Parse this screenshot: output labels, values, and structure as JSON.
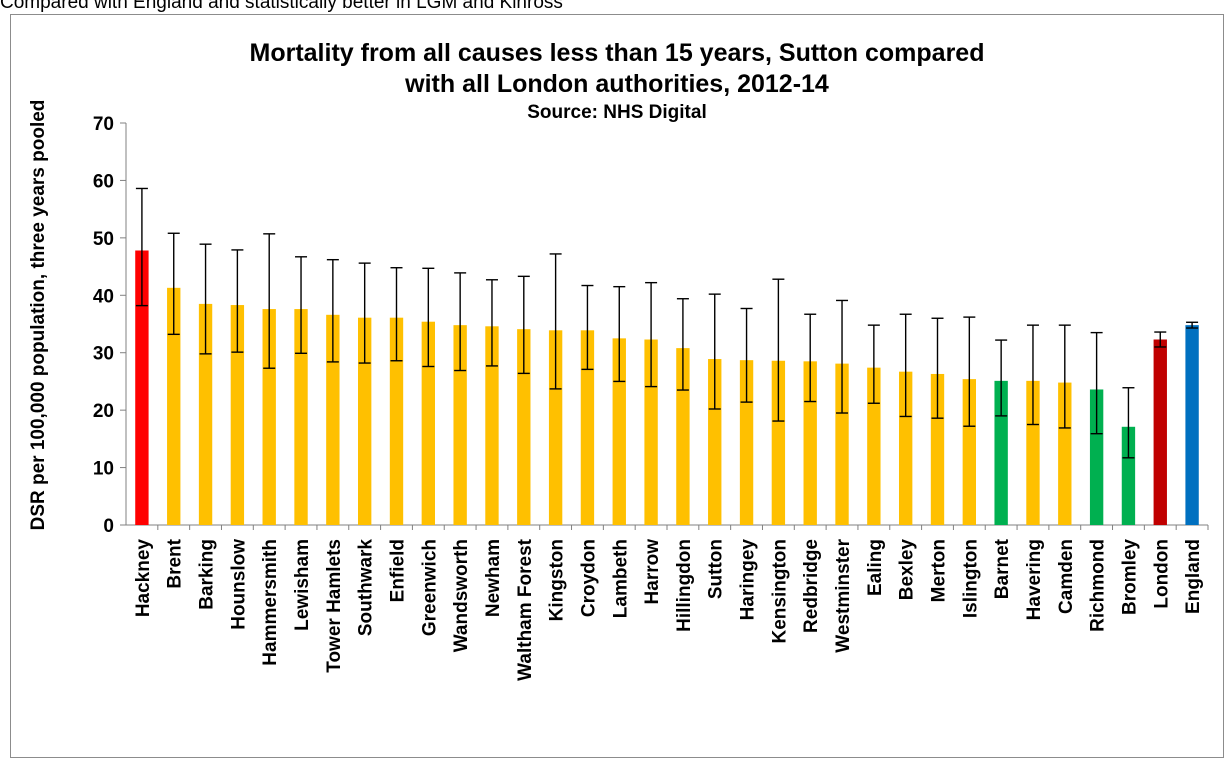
{
  "caption_above": "Compared with England and statistically better in LGM and Kinross",
  "chart_data": {
    "type": "bar",
    "title_lines": [
      "Mortality from all causes less than 15 years, Sutton compared",
      "with all London authorities, 2012-14"
    ],
    "subtitle": "Source: NHS Digital",
    "ylabel": "DSR per 100,000 population,  three years pooled",
    "xlabel": "",
    "ylim": [
      0,
      70
    ],
    "yticks": [
      0,
      10,
      20,
      30,
      40,
      50,
      60,
      70
    ],
    "grid": false,
    "error_bars": true,
    "colors": {
      "worse": "#ff0000",
      "similar": "#ffc000",
      "better": "#00b050",
      "london": "#c00000",
      "england": "#0070c0",
      "errorbar": "#000000",
      "axis": "#808080"
    },
    "categories": [
      "Hackney",
      "Brent",
      "Barking",
      "Hounslow",
      "Hammersmith",
      "Lewisham",
      "Tower Hamlets",
      "Southwark",
      "Enfield",
      "Greenwich",
      "Wandsworth",
      "Newham",
      "Waltham Forest",
      "Kingston",
      "Croydon",
      "Lambeth",
      "Harrow",
      "Hillingdon",
      "Sutton",
      "Haringey",
      "Kensington",
      "Redbridge",
      "Westminster",
      "Ealing",
      "Bexley",
      "Merton",
      "Islington",
      "Barnet",
      "Havering",
      "Camden",
      "Richmond",
      "Bromley",
      "London",
      "England"
    ],
    "values": [
      47.8,
      41.3,
      38.5,
      38.3,
      37.6,
      37.6,
      36.6,
      36.1,
      36.1,
      35.4,
      34.8,
      34.6,
      34.1,
      33.9,
      33.9,
      32.5,
      32.3,
      30.8,
      28.9,
      28.7,
      28.6,
      28.5,
      28.1,
      27.4,
      26.7,
      26.3,
      25.4,
      25.1,
      25.1,
      24.8,
      23.6,
      17.1,
      32.3,
      34.8
    ],
    "lower": [
      38.2,
      33.2,
      29.8,
      30.1,
      27.3,
      29.9,
      28.4,
      28.2,
      28.6,
      27.6,
      26.9,
      27.7,
      26.4,
      23.7,
      27.1,
      25.0,
      24.1,
      23.5,
      20.2,
      21.4,
      18.1,
      21.5,
      19.5,
      21.2,
      18.9,
      18.6,
      17.2,
      19.0,
      17.5,
      16.9,
      15.9,
      11.7,
      31.0,
      34.3
    ],
    "upper": [
      58.6,
      50.8,
      48.9,
      47.9,
      50.7,
      46.7,
      46.2,
      45.6,
      44.8,
      44.7,
      43.9,
      42.7,
      43.3,
      47.2,
      41.7,
      41.5,
      42.2,
      39.4,
      40.2,
      37.7,
      42.8,
      36.7,
      39.1,
      34.8,
      36.7,
      36.0,
      36.2,
      32.2,
      34.8,
      34.8,
      33.5,
      23.9,
      33.6,
      35.3
    ],
    "categories_status": [
      "worse",
      "similar",
      "similar",
      "similar",
      "similar",
      "similar",
      "similar",
      "similar",
      "similar",
      "similar",
      "similar",
      "similar",
      "similar",
      "similar",
      "similar",
      "similar",
      "similar",
      "similar",
      "similar",
      "similar",
      "similar",
      "similar",
      "similar",
      "similar",
      "similar",
      "similar",
      "similar",
      "better",
      "similar",
      "similar",
      "better",
      "better",
      "london",
      "england"
    ]
  }
}
